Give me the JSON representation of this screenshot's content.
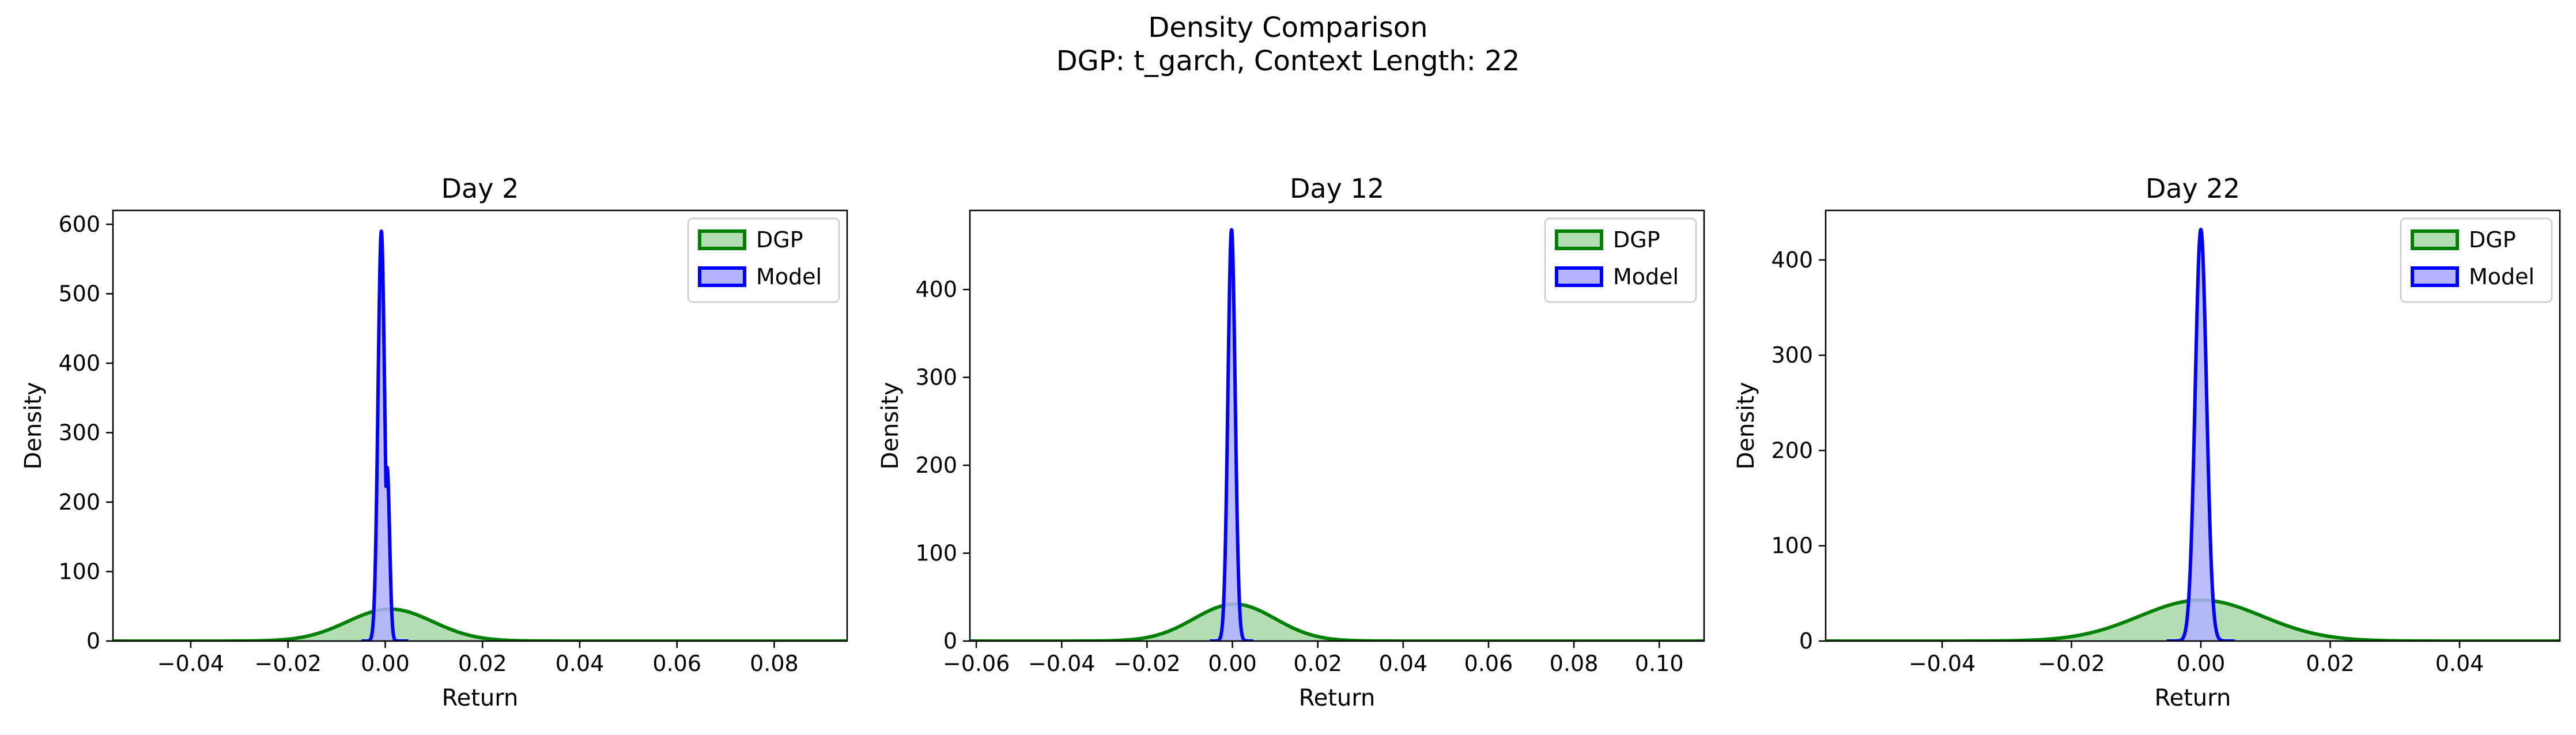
{
  "figure": {
    "title": "Density Comparison",
    "subtitle": "DGP: t_garch, Context Length: 22"
  },
  "colors": {
    "dgp_line": "#008000",
    "dgp_fill": "#b3deb3",
    "model_line": "#0000ff",
    "model_fill": "#b3b3ff"
  },
  "chart_data": [
    {
      "type": "area",
      "title": "Day 2",
      "xlabel": "Return",
      "ylabel": "Density",
      "xlim": [
        -0.056,
        0.095
      ],
      "ylim": [
        0,
        620
      ],
      "xticks": [
        -0.04,
        -0.02,
        0.0,
        0.02,
        0.04,
        0.06,
        0.08
      ],
      "xtick_labels": [
        "−0.04",
        "−0.02",
        "0.00",
        "0.02",
        "0.04",
        "0.06",
        "0.08"
      ],
      "yticks": [
        0,
        100,
        200,
        300,
        400,
        500,
        600
      ],
      "grid": false,
      "legend": "top-right",
      "series": [
        {
          "name": "DGP",
          "kind": "normal",
          "mean": 0.001,
          "sd": 0.0088,
          "peak": 46
        },
        {
          "name": "Model",
          "kind": "normal",
          "mean": -0.0008,
          "sd": 0.00068,
          "peak": 590,
          "shoulder": {
            "mean": 0.0004,
            "sd": 0.0005,
            "peak": 250
          }
        }
      ]
    },
    {
      "type": "area",
      "title": "Day 12",
      "xlabel": "Return",
      "ylabel": "Density",
      "xlim": [
        -0.0615,
        0.1105
      ],
      "ylim": [
        0,
        490
      ],
      "xticks": [
        -0.06,
        -0.04,
        -0.02,
        0.0,
        0.02,
        0.04,
        0.06,
        0.08,
        0.1
      ],
      "xtick_labels": [
        "−0.06",
        "−0.04",
        "−0.02",
        "0.00",
        "0.02",
        "0.04",
        "0.06",
        "0.08",
        "0.10"
      ],
      "yticks": [
        0,
        100,
        200,
        300,
        400
      ],
      "grid": false,
      "legend": "top-right",
      "series": [
        {
          "name": "DGP",
          "kind": "normal",
          "mean": 0.0005,
          "sd": 0.0095,
          "peak": 42
        },
        {
          "name": "Model",
          "kind": "normal",
          "mean": -0.0002,
          "sd": 0.00085,
          "peak": 468
        }
      ]
    },
    {
      "type": "area",
      "title": "Day 22",
      "xlabel": "Return",
      "ylabel": "Density",
      "xlim": [
        -0.058,
        0.0555
      ],
      "ylim": [
        0,
        452
      ],
      "xticks": [
        -0.04,
        -0.02,
        0.0,
        0.02,
        0.04
      ],
      "xtick_labels": [
        "−0.04",
        "−0.02",
        "0.00",
        "0.02",
        "0.04"
      ],
      "yticks": [
        0,
        100,
        200,
        300,
        400
      ],
      "grid": false,
      "legend": "top-right",
      "series": [
        {
          "name": "DGP",
          "kind": "normal",
          "mean": 0.0,
          "sd": 0.0095,
          "peak": 43
        },
        {
          "name": "Model",
          "kind": "normal",
          "mean": 0.0,
          "sd": 0.00088,
          "peak": 432
        }
      ]
    }
  ]
}
